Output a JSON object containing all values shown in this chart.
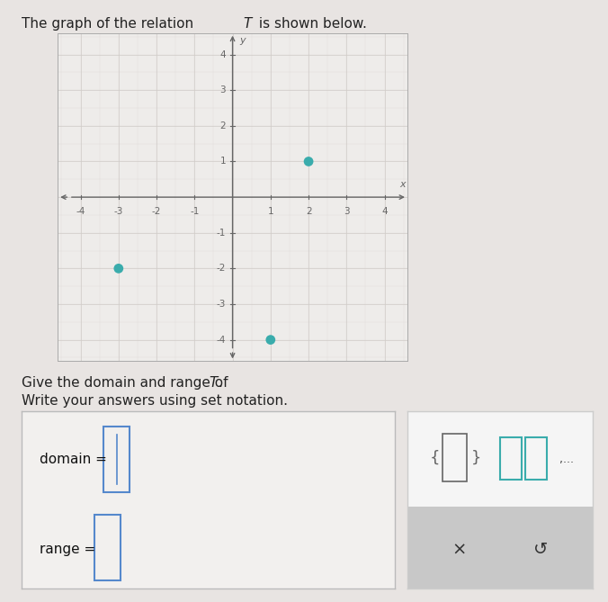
{
  "points": [
    [
      -3,
      -2
    ],
    [
      2,
      1
    ],
    [
      1,
      -4
    ]
  ],
  "point_color": "#3aacac",
  "point_size": 60,
  "xlim": [
    -4.6,
    4.6
  ],
  "ylim": [
    -4.6,
    4.6
  ],
  "xticks": [
    -4,
    -3,
    -2,
    -1,
    1,
    2,
    3,
    4
  ],
  "yticks": [
    -4,
    -3,
    -2,
    -1,
    1,
    2,
    3,
    4
  ],
  "grid_color": "#d0ccc8",
  "grid_minor_color": "#e2dedd",
  "axis_color": "#666666",
  "tick_label_color": "#666666",
  "graph_bg": "#eeecea",
  "page_bg": "#e8e4e2",
  "title_normal": "The graph of the relation ",
  "title_italic": "T",
  "title_end": " is shown below.",
  "subtitle1": "Give the domain and range of ",
  "subtitle1_italic": "T",
  "subtitle1_end": ".",
  "subtitle2": "Write your answers using set notation.",
  "domain_label": "domain = ",
  "range_label": "range = ",
  "box_bg": "#f2f0ee",
  "box_border": "#bbbbbb",
  "input_border": "#5588cc",
  "tool_bg": "#f5f5f5",
  "tool_border": "#cccccc",
  "tool_grey_strip": "#c8c8c8",
  "icon_color": "#3aacac",
  "bracket_icon_color": "#666666"
}
